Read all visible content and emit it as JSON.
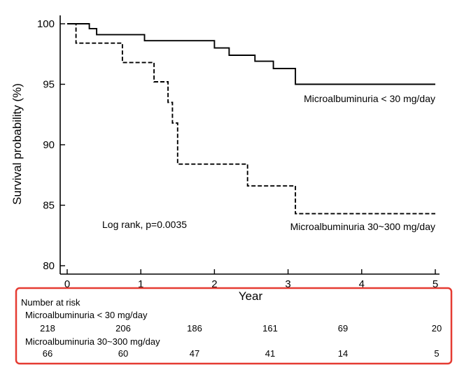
{
  "chart_data": {
    "type": "line",
    "subtype": "kaplan-meier step curve",
    "xlabel": "Year",
    "ylabel": "Survival probability (%)",
    "xlim": [
      0,
      5
    ],
    "ylim": [
      80,
      100
    ],
    "xticks": [
      "0",
      "1",
      "2",
      "3",
      "4",
      "5"
    ],
    "yticks": [
      "80",
      "85",
      "90",
      "95",
      "100"
    ],
    "grid": false,
    "series": [
      {
        "name": "Microalbuminuria < 30 mg/day",
        "style": "solid",
        "points": [
          [
            0,
            100
          ],
          [
            0.3,
            100
          ],
          [
            0.3,
            99.6
          ],
          [
            0.4,
            99.6
          ],
          [
            0.4,
            99.1
          ],
          [
            1.05,
            99.1
          ],
          [
            1.05,
            98.6
          ],
          [
            2.0,
            98.6
          ],
          [
            2.0,
            98.0
          ],
          [
            2.2,
            98.0
          ],
          [
            2.2,
            97.4
          ],
          [
            2.55,
            97.4
          ],
          [
            2.55,
            96.9
          ],
          [
            2.8,
            96.9
          ],
          [
            2.8,
            96.3
          ],
          [
            3.1,
            96.3
          ],
          [
            3.1,
            95.0
          ],
          [
            5.0,
            95.0
          ]
        ]
      },
      {
        "name": "Microalbuminuria 30~300 mg/day",
        "style": "dashed",
        "points": [
          [
            0,
            100
          ],
          [
            0.12,
            100
          ],
          [
            0.12,
            98.4
          ],
          [
            0.75,
            98.4
          ],
          [
            0.75,
            96.8
          ],
          [
            1.18,
            96.8
          ],
          [
            1.18,
            95.2
          ],
          [
            1.37,
            95.2
          ],
          [
            1.37,
            93.5
          ],
          [
            1.43,
            93.5
          ],
          [
            1.43,
            91.8
          ],
          [
            1.5,
            91.8
          ],
          [
            1.5,
            88.4
          ],
          [
            2.45,
            88.4
          ],
          [
            2.45,
            86.6
          ],
          [
            3.1,
            86.6
          ],
          [
            3.1,
            84.3
          ],
          [
            5.0,
            84.3
          ]
        ]
      }
    ],
    "annotations": [
      "Log rank, p=0.0035"
    ]
  },
  "risk_table": {
    "title": "Number at risk",
    "rows": [
      {
        "label": "Microalbuminuria < 30 mg/day",
        "values": [
          "218",
          "206",
          "186",
          "161",
          "69",
          "20"
        ]
      },
      {
        "label": "Microalbuminuria 30~300 mg/day",
        "values": [
          "66",
          "60",
          "47",
          "41",
          "14",
          "5"
        ]
      }
    ]
  },
  "colors": {
    "line": "#000000",
    "risk_box_border": "#e53b32"
  }
}
